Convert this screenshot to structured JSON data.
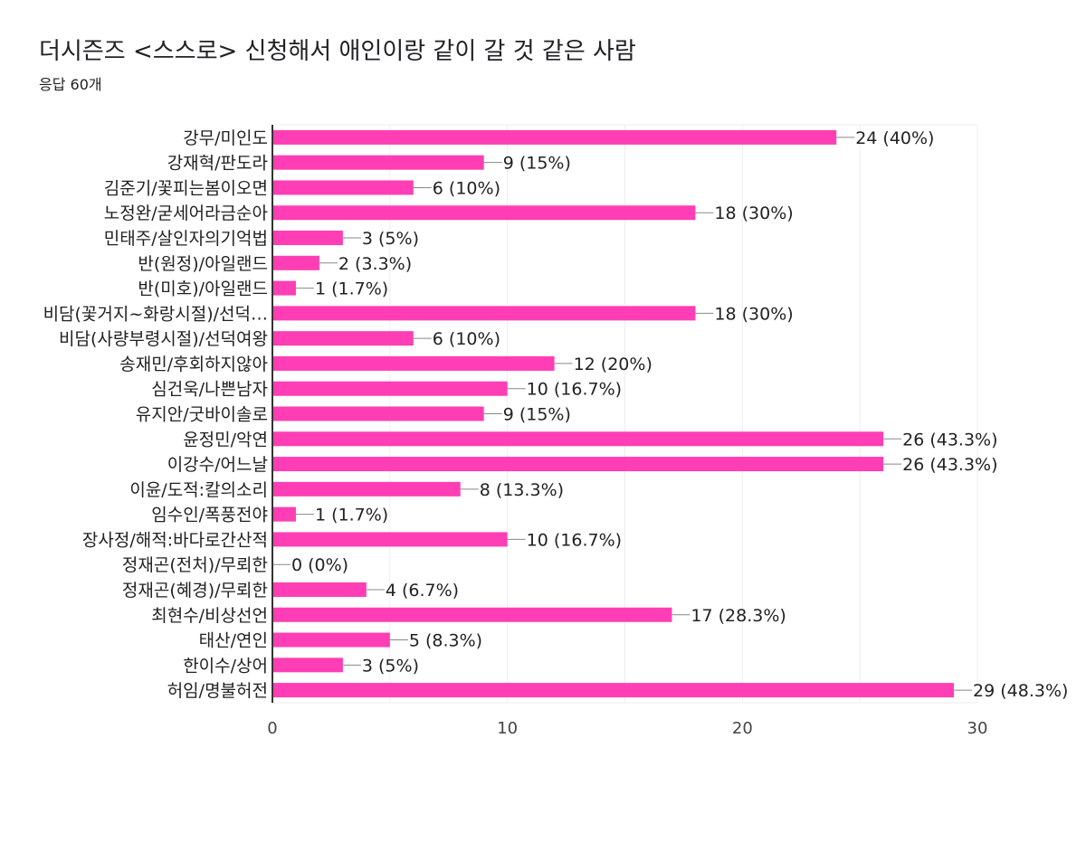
{
  "chart_data": {
    "type": "bar",
    "orientation": "horizontal",
    "title": "더시즌즈 <스스로> 신청해서 애인이랑 같이 갈 것 같은 사람",
    "subtitle": "응답 60개",
    "categories": [
      "강무/미인도",
      "강재혁/판도라",
      "김준기/꽃피는봄이오면",
      "노정완/굳세어라금순아",
      "민태주/살인자의기억법",
      "반(원정)/아일랜드",
      "반(미호)/아일랜드",
      "비담(꽃거지~화랑시절)/선덕…",
      "비담(사량부령시절)/선덕여왕",
      "송재민/후회하지않아",
      "심건욱/나쁜남자",
      "유지안/굿바이솔로",
      "윤정민/악연",
      "이강수/어느날",
      "이윤/도적:칼의소리",
      "임수인/폭풍전야",
      "장사정/해적:바다로간산적",
      "정재곤(전처)/무뢰한",
      "정재곤(혜경)/무뢰한",
      "최현수/비상선언",
      "태산/연인",
      "한이수/상어",
      "허임/명불허전"
    ],
    "values": [
      24,
      9,
      6,
      18,
      3,
      2,
      1,
      18,
      6,
      12,
      10,
      9,
      26,
      26,
      8,
      1,
      10,
      0,
      4,
      17,
      5,
      3,
      29
    ],
    "data_labels": [
      "24 (40%)",
      "9 (15%)",
      "6 (10%)",
      "18 (30%)",
      "3 (5%)",
      "2 (3.3%)",
      "1 (1.7%)",
      "18 (30%)",
      "6 (10%)",
      "12 (20%)",
      "10 (16.7%)",
      "9 (15%)",
      "26 (43.3%)",
      "26 (43.3%)",
      "8 (13.3%)",
      "1 (1.7%)",
      "10 (16.7%)",
      "0 (0%)",
      "4 (6.7%)",
      "17 (28.3%)",
      "5 (8.3%)",
      "3 (5%)",
      "29 (48.3%)"
    ],
    "xlim": [
      0,
      30
    ],
    "x_ticks": [
      0,
      10,
      20,
      30
    ],
    "grid": true,
    "legend": "none",
    "bar_color": "#ff3eb5"
  }
}
